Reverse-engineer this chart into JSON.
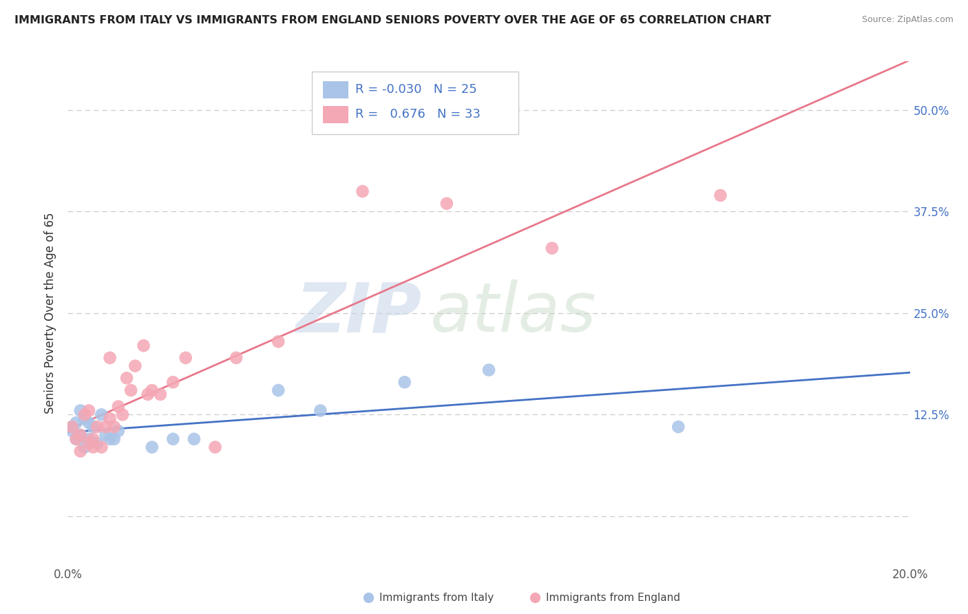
{
  "title": "IMMIGRANTS FROM ITALY VS IMMIGRANTS FROM ENGLAND SENIORS POVERTY OVER THE AGE OF 65 CORRELATION CHART",
  "source": "Source: ZipAtlas.com",
  "ylabel": "Seniors Poverty Over the Age of 65",
  "x_min": 0.0,
  "x_max": 0.2,
  "y_min": -0.06,
  "y_max": 0.56,
  "x_ticks": [
    0.0,
    0.05,
    0.1,
    0.15,
    0.2
  ],
  "x_tick_labels": [
    "0.0%",
    "",
    "",
    "",
    "20.0%"
  ],
  "y_ticks": [
    0.0,
    0.125,
    0.25,
    0.375,
    0.5
  ],
  "y_tick_labels": [
    "",
    "12.5%",
    "25.0%",
    "37.5%",
    "50.0%"
  ],
  "italy_color": "#aac4e8",
  "england_color": "#f4a7b4",
  "italy_line_color": "#4472c4",
  "england_line_color": "#e8778a",
  "italy_R": -0.03,
  "italy_N": 25,
  "england_R": 0.676,
  "england_N": 33,
  "watermark_zip": "ZIP",
  "watermark_atlas": "atlas",
  "legend_italy_label": "Immigrants from Italy",
  "legend_england_label": "Immigrants from England",
  "italy_x": [
    0.001,
    0.001,
    0.002,
    0.002,
    0.003,
    0.003,
    0.004,
    0.004,
    0.005,
    0.005,
    0.006,
    0.007,
    0.008,
    0.009,
    0.01,
    0.011,
    0.012,
    0.02,
    0.025,
    0.03,
    0.05,
    0.06,
    0.08,
    0.1,
    0.145
  ],
  "italy_y": [
    0.11,
    0.105,
    0.095,
    0.115,
    0.13,
    0.1,
    0.085,
    0.12,
    0.095,
    0.115,
    0.11,
    0.09,
    0.125,
    0.1,
    0.095,
    0.095,
    0.105,
    0.085,
    0.095,
    0.095,
    0.155,
    0.13,
    0.165,
    0.18,
    0.11
  ],
  "england_x": [
    0.001,
    0.002,
    0.003,
    0.003,
    0.004,
    0.005,
    0.005,
    0.006,
    0.006,
    0.007,
    0.008,
    0.009,
    0.01,
    0.01,
    0.011,
    0.012,
    0.013,
    0.014,
    0.015,
    0.016,
    0.018,
    0.019,
    0.02,
    0.022,
    0.025,
    0.028,
    0.035,
    0.04,
    0.05,
    0.07,
    0.09,
    0.115,
    0.155
  ],
  "england_y": [
    0.11,
    0.095,
    0.08,
    0.1,
    0.125,
    0.09,
    0.13,
    0.085,
    0.095,
    0.11,
    0.085,
    0.11,
    0.12,
    0.195,
    0.11,
    0.135,
    0.125,
    0.17,
    0.155,
    0.185,
    0.21,
    0.15,
    0.155,
    0.15,
    0.165,
    0.195,
    0.085,
    0.195,
    0.215,
    0.4,
    0.385,
    0.33,
    0.395
  ],
  "italy_line_x0": 0.0,
  "italy_line_x1": 0.2,
  "england_line_x0": 0.0,
  "england_line_x1": 0.2,
  "grid_color": "#cccccc",
  "tick_color": "#555555",
  "right_tick_color": "#4472c4"
}
